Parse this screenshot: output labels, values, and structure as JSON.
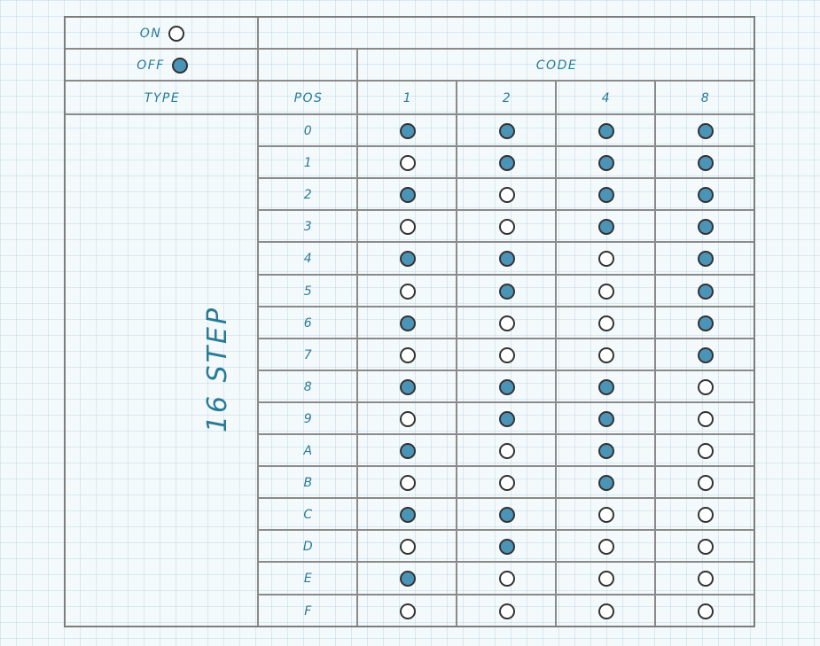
{
  "legend": {
    "on_label": "ON",
    "off_label": "OFF"
  },
  "header": {
    "code_label": "CODE",
    "type_label": "TYPE",
    "pos_label": "POS",
    "code_columns": [
      "1",
      "2",
      "4",
      "8"
    ]
  },
  "type_value": "16 STEP",
  "colors": {
    "on_fill": "#ffffff",
    "off_fill": "#4a94b8",
    "text": "#2a7a96"
  },
  "rows": [
    {
      "pos": "0",
      "states": [
        "OFF",
        "OFF",
        "OFF",
        "OFF"
      ]
    },
    {
      "pos": "1",
      "states": [
        "ON",
        "OFF",
        "OFF",
        "OFF"
      ]
    },
    {
      "pos": "2",
      "states": [
        "OFF",
        "ON",
        "OFF",
        "OFF"
      ]
    },
    {
      "pos": "3",
      "states": [
        "ON",
        "ON",
        "OFF",
        "OFF"
      ]
    },
    {
      "pos": "4",
      "states": [
        "OFF",
        "OFF",
        "ON",
        "OFF"
      ]
    },
    {
      "pos": "5",
      "states": [
        "ON",
        "OFF",
        "ON",
        "OFF"
      ]
    },
    {
      "pos": "6",
      "states": [
        "OFF",
        "ON",
        "ON",
        "OFF"
      ]
    },
    {
      "pos": "7",
      "states": [
        "ON",
        "ON",
        "ON",
        "OFF"
      ]
    },
    {
      "pos": "8",
      "states": [
        "OFF",
        "OFF",
        "OFF",
        "ON"
      ]
    },
    {
      "pos": "9",
      "states": [
        "ON",
        "OFF",
        "OFF",
        "ON"
      ]
    },
    {
      "pos": "A",
      "states": [
        "OFF",
        "ON",
        "OFF",
        "ON"
      ]
    },
    {
      "pos": "B",
      "states": [
        "ON",
        "ON",
        "OFF",
        "ON"
      ]
    },
    {
      "pos": "C",
      "states": [
        "OFF",
        "OFF",
        "ON",
        "ON"
      ]
    },
    {
      "pos": "D",
      "states": [
        "ON",
        "OFF",
        "ON",
        "ON"
      ]
    },
    {
      "pos": "E",
      "states": [
        "OFF",
        "ON",
        "ON",
        "ON"
      ]
    },
    {
      "pos": "F",
      "states": [
        "ON",
        "ON",
        "ON",
        "ON"
      ]
    }
  ]
}
